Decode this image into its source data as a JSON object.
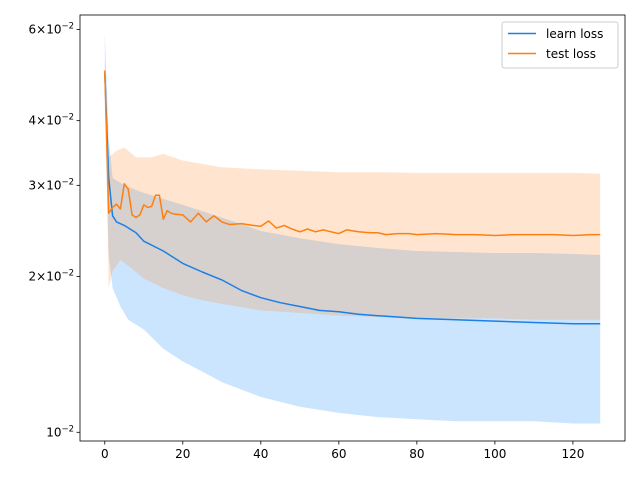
{
  "chart_data": {
    "type": "line",
    "title": "",
    "xlabel": "",
    "ylabel": "",
    "xlim": [
      -6.35,
      133.35
    ],
    "ylim": [
      0.00962,
      0.064
    ],
    "yscale": "log",
    "grid": false,
    "legend_position": "top-right",
    "x_ticks": [
      0,
      20,
      40,
      60,
      80,
      100,
      120
    ],
    "x_tick_labels": [
      "0",
      "20",
      "40",
      "60",
      "80",
      "100",
      "120"
    ],
    "y_ticks": [
      {
        "value": 0.06,
        "mantissa": "6",
        "exp": "−2"
      },
      {
        "value": 0.04,
        "mantissa": "4",
        "exp": "−2"
      },
      {
        "value": 0.03,
        "mantissa": "3",
        "exp": "−2"
      },
      {
        "value": 0.02,
        "mantissa": "2",
        "exp": "−2"
      },
      {
        "value": 0.01,
        "mantissa": "",
        "exp": "−2"
      }
    ],
    "y_tick_base": "10",
    "series": [
      {
        "name": "learn loss",
        "color": "#1a80e5",
        "band_color": "#3399ff",
        "points": [
          [
            0,
            0.0495
          ],
          [
            1,
            0.031
          ],
          [
            2,
            0.0262
          ],
          [
            3,
            0.0255
          ],
          [
            5,
            0.0251
          ],
          [
            8,
            0.0243
          ],
          [
            10,
            0.0234
          ],
          [
            15,
            0.0224
          ],
          [
            20,
            0.0212
          ],
          [
            25,
            0.0204
          ],
          [
            30,
            0.0197
          ],
          [
            35,
            0.0188
          ],
          [
            40,
            0.0182
          ],
          [
            45,
            0.0178
          ],
          [
            50,
            0.0175
          ],
          [
            55,
            0.0172
          ],
          [
            60,
            0.0171
          ],
          [
            65,
            0.0169
          ],
          [
            70,
            0.0168
          ],
          [
            80,
            0.0166
          ],
          [
            90,
            0.0165
          ],
          [
            100,
            0.0164
          ],
          [
            110,
            0.0163
          ],
          [
            120,
            0.0162
          ],
          [
            127,
            0.0162
          ]
        ],
        "band_upper": [
          [
            0,
            0.059
          ],
          [
            1,
            0.037
          ],
          [
            2,
            0.031
          ],
          [
            5,
            0.03
          ],
          [
            10,
            0.029
          ],
          [
            20,
            0.0275
          ],
          [
            30,
            0.026
          ],
          [
            40,
            0.0245
          ],
          [
            50,
            0.0237
          ],
          [
            60,
            0.0231
          ],
          [
            70,
            0.0227
          ],
          [
            80,
            0.0224
          ],
          [
            90,
            0.0223
          ],
          [
            100,
            0.0222
          ],
          [
            110,
            0.0222
          ],
          [
            120,
            0.0221
          ],
          [
            127,
            0.022
          ]
        ],
        "band_lower": [
          [
            0,
            0.043
          ],
          [
            1,
            0.022
          ],
          [
            2,
            0.019
          ],
          [
            4,
            0.0175
          ],
          [
            6,
            0.0165
          ],
          [
            10,
            0.0158
          ],
          [
            15,
            0.0145
          ],
          [
            20,
            0.0137
          ],
          [
            25,
            0.0131
          ],
          [
            30,
            0.0125
          ],
          [
            40,
            0.0117
          ],
          [
            50,
            0.0112
          ],
          [
            60,
            0.0109
          ],
          [
            70,
            0.0107
          ],
          [
            80,
            0.0106
          ],
          [
            90,
            0.0105
          ],
          [
            100,
            0.0105
          ],
          [
            110,
            0.0105
          ],
          [
            120,
            0.0104
          ],
          [
            127,
            0.0104
          ]
        ]
      },
      {
        "name": "test loss",
        "color": "#ff7f0e",
        "band_color": "#ff7f0e",
        "points": [
          [
            0,
            0.05
          ],
          [
            1,
            0.0265
          ],
          [
            2,
            0.0272
          ],
          [
            3,
            0.0276
          ],
          [
            4,
            0.027
          ],
          [
            5,
            0.0302
          ],
          [
            6,
            0.0295
          ],
          [
            7,
            0.0263
          ],
          [
            8,
            0.026
          ],
          [
            9,
            0.0263
          ],
          [
            10,
            0.0275
          ],
          [
            11,
            0.0272
          ],
          [
            12,
            0.0273
          ],
          [
            13,
            0.0287
          ],
          [
            14,
            0.0287
          ],
          [
            15,
            0.0258
          ],
          [
            16,
            0.0268
          ],
          [
            17,
            0.0265
          ],
          [
            18,
            0.0264
          ],
          [
            20,
            0.0263
          ],
          [
            22,
            0.0255
          ],
          [
            24,
            0.0265
          ],
          [
            26,
            0.0255
          ],
          [
            28,
            0.0262
          ],
          [
            30,
            0.0255
          ],
          [
            32,
            0.0252
          ],
          [
            35,
            0.0253
          ],
          [
            38,
            0.0251
          ],
          [
            40,
            0.025
          ],
          [
            42,
            0.0256
          ],
          [
            44,
            0.0248
          ],
          [
            46,
            0.0251
          ],
          [
            48,
            0.0247
          ],
          [
            50,
            0.0244
          ],
          [
            52,
            0.0247
          ],
          [
            54,
            0.0244
          ],
          [
            56,
            0.0246
          ],
          [
            58,
            0.0244
          ],
          [
            60,
            0.0242
          ],
          [
            62,
            0.0246
          ],
          [
            65,
            0.0244
          ],
          [
            68,
            0.0243
          ],
          [
            70,
            0.0243
          ],
          [
            72,
            0.0241
          ],
          [
            75,
            0.0242
          ],
          [
            78,
            0.0242
          ],
          [
            80,
            0.0241
          ],
          [
            85,
            0.0242
          ],
          [
            90,
            0.0241
          ],
          [
            95,
            0.0241
          ],
          [
            100,
            0.024
          ],
          [
            105,
            0.0241
          ],
          [
            110,
            0.0241
          ],
          [
            115,
            0.0241
          ],
          [
            120,
            0.024
          ],
          [
            125,
            0.0241
          ],
          [
            127,
            0.0241
          ]
        ],
        "band_upper": [
          [
            0,
            0.052
          ],
          [
            1,
            0.034
          ],
          [
            3,
            0.035
          ],
          [
            5,
            0.0355
          ],
          [
            8,
            0.034
          ],
          [
            12,
            0.034
          ],
          [
            15,
            0.0345
          ],
          [
            20,
            0.0335
          ],
          [
            25,
            0.033
          ],
          [
            30,
            0.0325
          ],
          [
            40,
            0.0322
          ],
          [
            50,
            0.032
          ],
          [
            60,
            0.0318
          ],
          [
            70,
            0.0318
          ],
          [
            80,
            0.0317
          ],
          [
            90,
            0.0317
          ],
          [
            100,
            0.0317
          ],
          [
            110,
            0.0317
          ],
          [
            120,
            0.0317
          ],
          [
            127,
            0.0316
          ]
        ],
        "band_lower": [
          [
            0,
            0.048
          ],
          [
            1,
            0.019
          ],
          [
            2,
            0.0205
          ],
          [
            4,
            0.0215
          ],
          [
            6,
            0.021
          ],
          [
            10,
            0.0198
          ],
          [
            15,
            0.019
          ],
          [
            20,
            0.0184
          ],
          [
            25,
            0.018
          ],
          [
            30,
            0.0177
          ],
          [
            40,
            0.0172
          ],
          [
            50,
            0.017
          ],
          [
            60,
            0.0168
          ],
          [
            70,
            0.0167
          ],
          [
            80,
            0.0166
          ],
          [
            90,
            0.0166
          ],
          [
            100,
            0.0166
          ],
          [
            110,
            0.0165
          ],
          [
            120,
            0.0165
          ],
          [
            127,
            0.0165
          ]
        ]
      }
    ]
  }
}
